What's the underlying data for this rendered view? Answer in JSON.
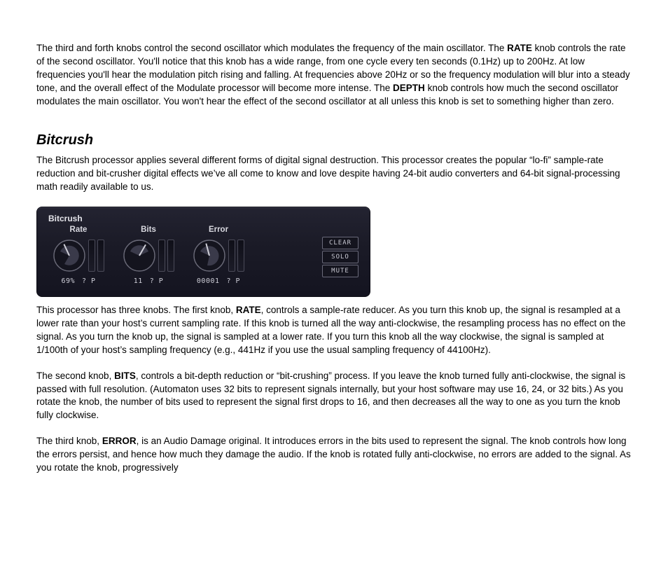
{
  "intro_para": {
    "pre_rate": "The third and forth knobs control the second oscillator which modulates the frequency of the main oscillator. The ",
    "rate_word": "RATE",
    "mid1": " knob controls the rate of the second oscillator. You'll notice that this knob has a wide range, from one cycle every ten seconds (0.1Hz) up to 200Hz. At low frequencies you'll hear the modulation pitch rising and falling. At frequencies above 20Hz or so the frequency modulation will blur into a steady tone, and the overall effect of the Modulate processor will become more intense. The ",
    "depth_word": "DEPTH",
    "post": " knob controls how much the second oscillator modulates the main oscillator. You won't hear the effect of the second oscillator at all unless this knob is set to something higher than zero."
  },
  "section_heading": "Bitcrush",
  "para_after_heading": "The Bitcrush processor applies several different forms of digital signal destruction. This processor creates the popular “lo-fi” sample-rate reduction and bit-crusher digital effects we’ve all come to know and love despite having 24-bit audio converters and 64-bit signal-processing math readily available to us.",
  "plugin": {
    "title": "Bitcrush",
    "background_gradient": [
      "#232331",
      "#141420"
    ],
    "text_color": "#d9d9e0",
    "knob_outline": "#6a6a78",
    "knob_fill": "#14141e",
    "knob_pointer_color": "#d0d0d8",
    "buttons": {
      "clear": "CLEAR",
      "solo": "SOLO",
      "mute": "MUTE"
    },
    "knobs": {
      "rate": {
        "label": "Rate",
        "value_text": "69%",
        "qp_text": "? P",
        "angle_deg": 110
      },
      "bits": {
        "label": "Bits",
        "value_text": "11",
        "qp_text": "? P",
        "angle_deg": 165
      },
      "error": {
        "label": "Error",
        "value_text": "00001",
        "qp_text": "? P",
        "angle_deg": 120
      }
    }
  },
  "para_rate": {
    "pre": "This processor has three knobs. The first knob, ",
    "word": "RATE",
    "post": ", controls a sample-rate reducer. As you turn this knob up, the signal is resampled at a lower rate than your host’s current sampling rate. If this knob is turned all the way anti-clockwise, the resampling process has no effect on the signal. As you turn the knob up, the signal is sampled at a lower rate. If you turn this knob all the way clockwise, the signal is sampled at 1/100th of your host’s sampling frequency (e.g., 441Hz if you use the usual sampling frequency of 44100Hz)."
  },
  "para_bits": {
    "pre": "The second knob, ",
    "word": "BITS",
    "post": ", controls a bit-depth reduction or “bit-crushing” process. If you leave the knob turned fully anti-clockwise, the signal is passed with full resolution. (Automaton uses 32 bits to represent signals internally, but your host software may use 16, 24, or 32 bits.) As you rotate the knob, the number of bits used to represent the signal first drops to 16, and then decreases all the way to one as you turn the knob fully clockwise."
  },
  "para_error": {
    "pre": "The third knob, ",
    "word": "ERROR",
    "post": ", is an Audio Damage original. It introduces errors in the bits used to represent the signal. The knob controls how long the errors persist, and hence how much they damage the audio. If the knob is rotated fully anti-clockwise, no errors are added to the signal. As you rotate the knob, progressively"
  }
}
